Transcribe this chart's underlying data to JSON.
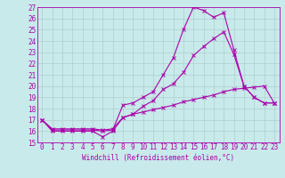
{
  "xlabel": "Windchill (Refroidissement éolien,°C)",
  "bg_color": "#c8eaea",
  "grid_color": "#b0cece",
  "line_color": "#aa00aa",
  "xlim": [
    -0.5,
    23.5
  ],
  "ylim": [
    15,
    27
  ],
  "xticks": [
    0,
    1,
    2,
    3,
    4,
    5,
    6,
    7,
    8,
    9,
    10,
    11,
    12,
    13,
    14,
    15,
    16,
    17,
    18,
    19,
    20,
    21,
    22,
    23
  ],
  "yticks": [
    15,
    16,
    17,
    18,
    19,
    20,
    21,
    22,
    23,
    24,
    25,
    26,
    27
  ],
  "line1_x": [
    0,
    1,
    2,
    3,
    4,
    5,
    6,
    7,
    8,
    9,
    10,
    11,
    12,
    13,
    14,
    15,
    16,
    17,
    18,
    19,
    20,
    21,
    22,
    23
  ],
  "line1_y": [
    17.0,
    16.1,
    16.1,
    16.1,
    16.1,
    16.1,
    16.0,
    16.1,
    18.3,
    18.5,
    19.0,
    19.5,
    21.0,
    22.5,
    25.0,
    27.0,
    26.7,
    26.1,
    26.5,
    23.2,
    20.0,
    19.0,
    18.5,
    18.5
  ],
  "line2_x": [
    0,
    1,
    2,
    3,
    4,
    5,
    6,
    7,
    8,
    9,
    10,
    11,
    12,
    13,
    14,
    15,
    16,
    17,
    18,
    19,
    20,
    21,
    22,
    23
  ],
  "line2_y": [
    17.0,
    16.0,
    16.0,
    16.0,
    16.0,
    16.0,
    15.5,
    16.0,
    17.2,
    17.5,
    18.2,
    18.7,
    19.7,
    20.2,
    21.2,
    22.7,
    23.5,
    24.2,
    24.8,
    22.8,
    20.0,
    19.0,
    18.5,
    18.5
  ],
  "line3_x": [
    0,
    1,
    2,
    3,
    4,
    5,
    6,
    7,
    8,
    9,
    10,
    11,
    12,
    13,
    14,
    15,
    16,
    17,
    18,
    19,
    20,
    21,
    22,
    23
  ],
  "line3_y": [
    17.0,
    16.2,
    16.2,
    16.2,
    16.2,
    16.2,
    16.1,
    16.2,
    17.2,
    17.5,
    17.7,
    17.9,
    18.1,
    18.3,
    18.6,
    18.8,
    19.0,
    19.2,
    19.5,
    19.7,
    19.8,
    19.9,
    20.0,
    18.5
  ],
  "marker_size": 2.5,
  "line_width": 0.8,
  "tick_fontsize": 5.5,
  "xlabel_fontsize": 5.5
}
